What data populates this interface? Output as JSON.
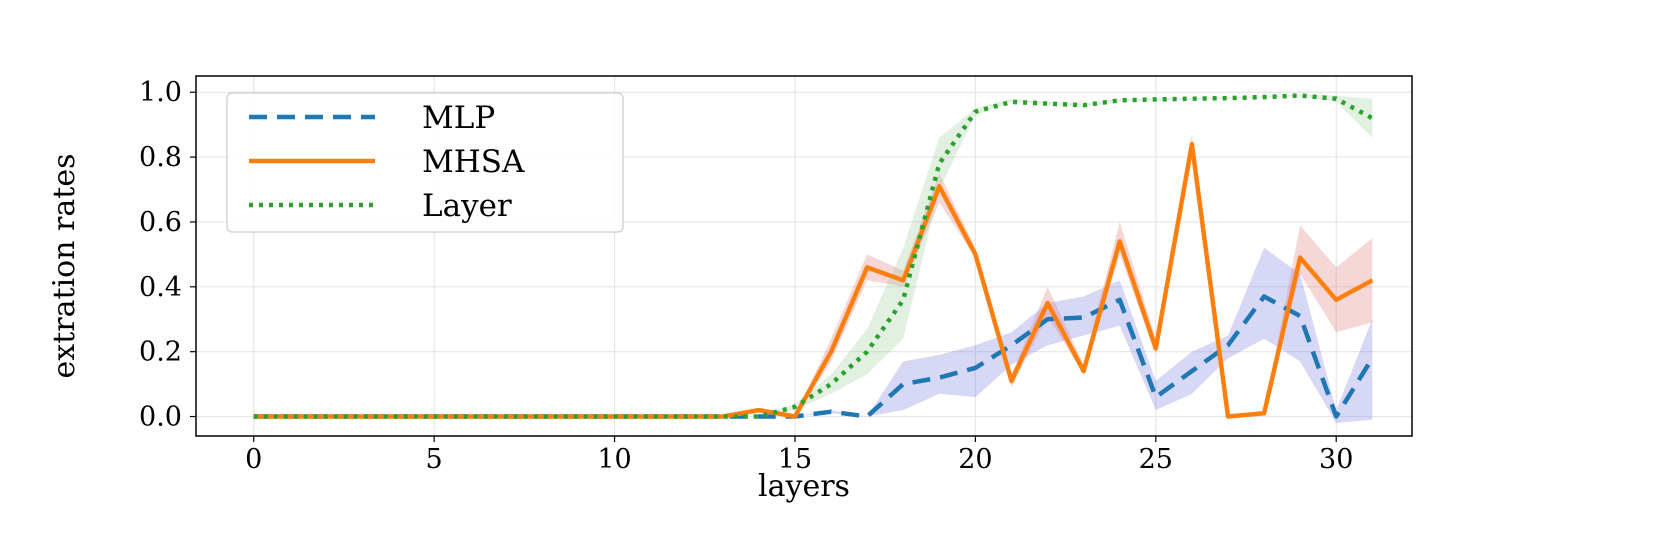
{
  "chart_data": {
    "type": "line",
    "title": "",
    "xlabel": "layers",
    "ylabel": "extration rates",
    "xlim": [
      -1.6,
      32.1
    ],
    "ylim": [
      -0.06,
      1.05
    ],
    "xticks": [
      "0",
      "5",
      "10",
      "15",
      "20",
      "25",
      "30"
    ],
    "yticks": [
      "0.0",
      "0.2",
      "0.4",
      "0.6",
      "0.8",
      "1.0"
    ],
    "grid": true,
    "legend_position": "upper-left",
    "x": [
      0,
      1,
      2,
      3,
      4,
      5,
      6,
      7,
      8,
      9,
      10,
      11,
      12,
      13,
      14,
      15,
      16,
      17,
      18,
      19,
      20,
      21,
      22,
      23,
      24,
      25,
      26,
      27,
      28,
      29,
      30,
      31
    ],
    "series": [
      {
        "name": "MLP",
        "color": "#1f77b4",
        "band_color": "#6f6fe0",
        "style": "dashed",
        "values": [
          0,
          0,
          0,
          0,
          0,
          0,
          0,
          0,
          0,
          0,
          0,
          0,
          0,
          0,
          0,
          0,
          0.015,
          0,
          0.1,
          0.12,
          0.15,
          0.22,
          0.3,
          0.305,
          0.36,
          0.06,
          0.14,
          0.22,
          0.37,
          0.31,
          0,
          0.18
        ],
        "lower": [
          0,
          0,
          0,
          0,
          0,
          0,
          0,
          0,
          0,
          0,
          0,
          0,
          0,
          0,
          0,
          0,
          0.01,
          0,
          0.02,
          0.07,
          0.06,
          0.16,
          0.22,
          0.25,
          0.28,
          0.02,
          0.07,
          0.18,
          0.24,
          0.17,
          -0.02,
          -0.01
        ],
        "upper": [
          0,
          0,
          0,
          0,
          0,
          0,
          0,
          0,
          0,
          0,
          0,
          0,
          0,
          0,
          0,
          0,
          0.02,
          0,
          0.17,
          0.19,
          0.22,
          0.26,
          0.35,
          0.37,
          0.42,
          0.11,
          0.2,
          0.25,
          0.52,
          0.44,
          0.02,
          0.3
        ]
      },
      {
        "name": "MHSA",
        "color": "#ff7f0e",
        "band_color": "#e07070",
        "style": "solid",
        "values": [
          0,
          0,
          0,
          0,
          0,
          0,
          0,
          0,
          0,
          0,
          0,
          0,
          0,
          0,
          0.02,
          0,
          0.2,
          0.46,
          0.42,
          0.71,
          0.5,
          0.11,
          0.35,
          0.14,
          0.54,
          0.21,
          0.84,
          0,
          0.01,
          0.49,
          0.36,
          0.42
        ],
        "lower": [
          0,
          0,
          0,
          0,
          0,
          0,
          0,
          0,
          0,
          0,
          0,
          0,
          0,
          0,
          0.02,
          0,
          0.17,
          0.42,
          0.4,
          0.66,
          0.49,
          0.09,
          0.31,
          0.13,
          0.5,
          0.19,
          0.81,
          0,
          0.01,
          0.44,
          0.26,
          0.29
        ],
        "upper": [
          0,
          0,
          0,
          0,
          0,
          0,
          0,
          0,
          0,
          0,
          0,
          0,
          0,
          0,
          0.02,
          0,
          0.24,
          0.5,
          0.45,
          0.75,
          0.52,
          0.13,
          0.4,
          0.16,
          0.6,
          0.24,
          0.87,
          0,
          0.01,
          0.59,
          0.46,
          0.55
        ]
      },
      {
        "name": "Layer",
        "color": "#2ca02c",
        "band_color": "#98c998",
        "style": "dotted",
        "values": [
          0,
          0,
          0,
          0,
          0,
          0,
          0,
          0,
          0,
          0,
          0,
          0,
          0,
          0,
          0,
          0.03,
          0.1,
          0.2,
          0.36,
          0.78,
          0.94,
          0.97,
          0.965,
          0.96,
          0.975,
          0.978,
          0.98,
          0.982,
          0.985,
          0.99,
          0.98,
          0.92
        ],
        "lower": [
          0,
          0,
          0,
          0,
          0,
          0,
          0,
          0,
          0,
          0,
          0,
          0,
          0,
          0,
          0,
          0.02,
          0.07,
          0.13,
          0.24,
          0.7,
          0.93,
          0.97,
          0.96,
          0.955,
          0.97,
          0.975,
          0.978,
          0.98,
          0.982,
          0.988,
          0.97,
          0.86
        ],
        "upper": [
          0,
          0,
          0,
          0,
          0,
          0,
          0,
          0,
          0,
          0,
          0,
          0,
          0,
          0,
          0,
          0.04,
          0.13,
          0.27,
          0.52,
          0.86,
          0.95,
          0.98,
          0.97,
          0.965,
          0.98,
          0.982,
          0.983,
          0.985,
          0.988,
          0.993,
          0.99,
          0.98
        ]
      }
    ]
  }
}
